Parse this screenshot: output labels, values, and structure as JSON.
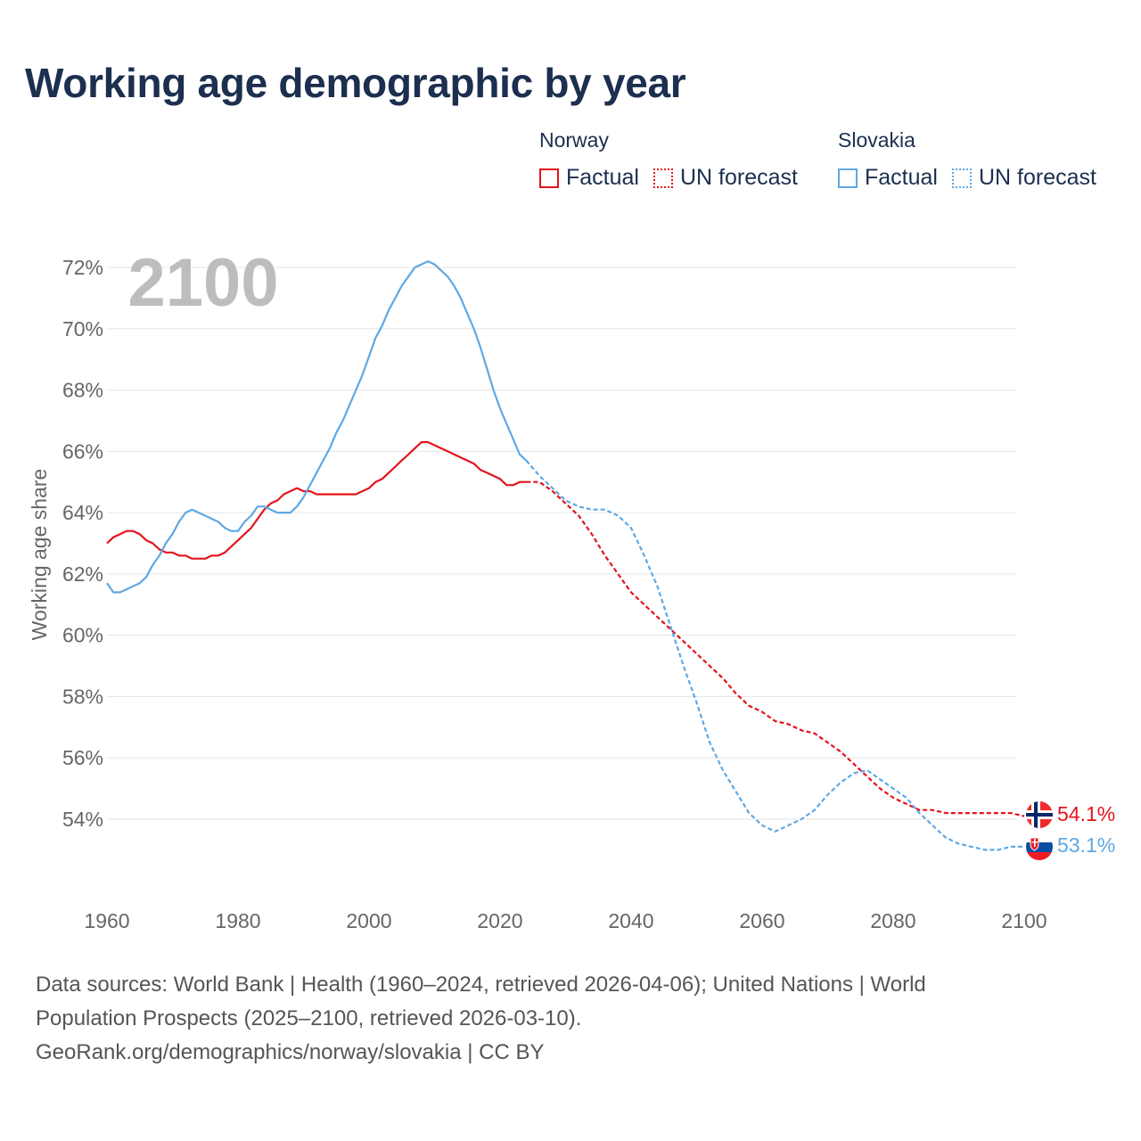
{
  "title": "Working age demographic by year",
  "legend": {
    "groups": [
      {
        "country": "Norway",
        "color": "#e3141c",
        "items": [
          "Factual",
          "UN forecast"
        ]
      },
      {
        "country": "Slovakia",
        "color": "#5fa8e3",
        "items": [
          "Factual",
          "UN forecast"
        ]
      }
    ]
  },
  "year_watermark": "2100",
  "end_labels": {
    "norway": "54.1%",
    "slovakia": "53.1%"
  },
  "sources": {
    "line1": "Data sources: World Bank | Health (1960–2024, retrieved 2026-04-06); United Nations | World Population Prospects (2025–2100, retrieved 2026-03-10).",
    "line2": "GeoRank.org/demographics/norway/slovakia | CC BY"
  },
  "chart_data": {
    "type": "line",
    "title": "Working age demographic by year",
    "xlabel": "",
    "ylabel": "Working age share",
    "xlim": [
      1960,
      2103
    ],
    "ylim": [
      52,
      72.5
    ],
    "x_ticks": [
      1960,
      1980,
      2000,
      2020,
      2040,
      2060,
      2080,
      2100
    ],
    "y_ticks": [
      54,
      56,
      58,
      60,
      62,
      64,
      66,
      68,
      70,
      72
    ],
    "y_tick_labels": [
      "54%",
      "56%",
      "58%",
      "60%",
      "62%",
      "64%",
      "66%",
      "68%",
      "70%",
      "72%"
    ],
    "grid": true,
    "legend_position": "top-right",
    "series": [
      {
        "name": "Norway",
        "variant": "Factual",
        "color": "#e3141c",
        "dashed": false,
        "x": [
          1960,
          1961,
          1962,
          1963,
          1964,
          1965,
          1966,
          1967,
          1968,
          1969,
          1970,
          1971,
          1972,
          1973,
          1974,
          1975,
          1976,
          1977,
          1978,
          1979,
          1980,
          1981,
          1982,
          1983,
          1984,
          1985,
          1986,
          1987,
          1988,
          1989,
          1990,
          1991,
          1992,
          1993,
          1994,
          1995,
          1996,
          1997,
          1998,
          1999,
          2000,
          2001,
          2002,
          2003,
          2004,
          2005,
          2006,
          2007,
          2008,
          2009,
          2010,
          2011,
          2012,
          2013,
          2014,
          2015,
          2016,
          2017,
          2018,
          2019,
          2020,
          2021,
          2022,
          2023,
          2024
        ],
        "y": [
          63.0,
          63.2,
          63.3,
          63.4,
          63.4,
          63.3,
          63.1,
          63.0,
          62.8,
          62.7,
          62.7,
          62.6,
          62.6,
          62.5,
          62.5,
          62.5,
          62.6,
          62.6,
          62.7,
          62.9,
          63.1,
          63.3,
          63.5,
          63.8,
          64.1,
          64.3,
          64.4,
          64.6,
          64.7,
          64.8,
          64.7,
          64.7,
          64.6,
          64.6,
          64.6,
          64.6,
          64.6,
          64.6,
          64.6,
          64.7,
          64.8,
          65.0,
          65.1,
          65.3,
          65.5,
          65.7,
          65.9,
          66.1,
          66.3,
          66.3,
          66.2,
          66.1,
          66.0,
          65.9,
          65.8,
          65.7,
          65.6,
          65.4,
          65.3,
          65.2,
          65.1,
          64.9,
          64.9,
          65.0,
          65.0
        ]
      },
      {
        "name": "Norway",
        "variant": "UN forecast",
        "color": "#e3141c",
        "dashed": true,
        "x": [
          2024,
          2026,
          2028,
          2030,
          2032,
          2034,
          2036,
          2038,
          2040,
          2042,
          2044,
          2046,
          2048,
          2050,
          2052,
          2054,
          2056,
          2058,
          2060,
          2062,
          2064,
          2066,
          2068,
          2070,
          2072,
          2074,
          2076,
          2078,
          2080,
          2082,
          2084,
          2086,
          2088,
          2090,
          2092,
          2094,
          2096,
          2098,
          2100
        ],
        "y": [
          65.0,
          65.0,
          64.7,
          64.3,
          63.9,
          63.3,
          62.6,
          62.0,
          61.4,
          61.0,
          60.6,
          60.2,
          59.8,
          59.4,
          59.0,
          58.6,
          58.1,
          57.7,
          57.5,
          57.2,
          57.1,
          56.9,
          56.8,
          56.5,
          56.2,
          55.8,
          55.4,
          55.0,
          54.7,
          54.5,
          54.3,
          54.3,
          54.2,
          54.2,
          54.2,
          54.2,
          54.2,
          54.2,
          54.1
        ]
      },
      {
        "name": "Slovakia",
        "variant": "Factual",
        "color": "#5fa8e3",
        "dashed": false,
        "x": [
          1960,
          1961,
          1962,
          1963,
          1964,
          1965,
          1966,
          1967,
          1968,
          1969,
          1970,
          1971,
          1972,
          1973,
          1974,
          1975,
          1976,
          1977,
          1978,
          1979,
          1980,
          1981,
          1982,
          1983,
          1984,
          1985,
          1986,
          1987,
          1988,
          1989,
          1990,
          1991,
          1992,
          1993,
          1994,
          1995,
          1996,
          1997,
          1998,
          1999,
          2000,
          2001,
          2002,
          2003,
          2004,
          2005,
          2006,
          2007,
          2008,
          2009,
          2010,
          2011,
          2012,
          2013,
          2014,
          2015,
          2016,
          2017,
          2018,
          2019,
          2020,
          2021,
          2022,
          2023,
          2024
        ],
        "y": [
          61.7,
          61.4,
          61.4,
          61.5,
          61.6,
          61.7,
          61.9,
          62.3,
          62.6,
          63.0,
          63.3,
          63.7,
          64.0,
          64.1,
          64.0,
          63.9,
          63.8,
          63.7,
          63.5,
          63.4,
          63.4,
          63.7,
          63.9,
          64.2,
          64.2,
          64.1,
          64.0,
          64.0,
          64.0,
          64.2,
          64.5,
          64.9,
          65.3,
          65.7,
          66.1,
          66.6,
          67.0,
          67.5,
          68.0,
          68.5,
          69.1,
          69.7,
          70.1,
          70.6,
          71.0,
          71.4,
          71.7,
          72.0,
          72.1,
          72.2,
          72.1,
          71.9,
          71.7,
          71.4,
          71.0,
          70.5,
          70.0,
          69.4,
          68.7,
          68.0,
          67.4,
          66.9,
          66.4,
          65.9,
          65.7
        ]
      },
      {
        "name": "Slovakia",
        "variant": "UN forecast",
        "color": "#5fa8e3",
        "dashed": true,
        "x": [
          2024,
          2026,
          2028,
          2030,
          2032,
          2034,
          2036,
          2038,
          2040,
          2042,
          2044,
          2046,
          2048,
          2050,
          2052,
          2054,
          2056,
          2058,
          2060,
          2062,
          2064,
          2066,
          2068,
          2070,
          2072,
          2074,
          2076,
          2078,
          2080,
          2082,
          2084,
          2086,
          2088,
          2090,
          2092,
          2094,
          2096,
          2098,
          2100
        ],
        "y": [
          65.7,
          65.2,
          64.8,
          64.4,
          64.2,
          64.1,
          64.1,
          63.9,
          63.5,
          62.6,
          61.6,
          60.3,
          59.0,
          57.8,
          56.5,
          55.6,
          54.9,
          54.2,
          53.8,
          53.6,
          53.8,
          54.0,
          54.3,
          54.8,
          55.2,
          55.5,
          55.6,
          55.3,
          55.0,
          54.7,
          54.2,
          53.8,
          53.4,
          53.2,
          53.1,
          53.0,
          53.0,
          53.1,
          53.1
        ]
      }
    ]
  }
}
